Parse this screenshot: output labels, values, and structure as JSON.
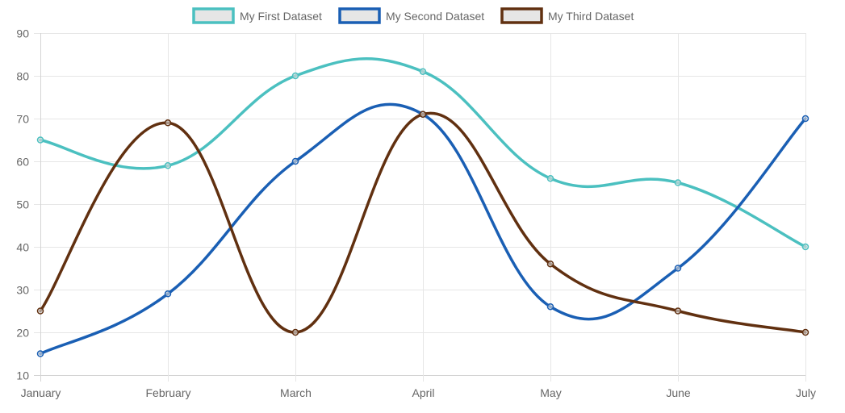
{
  "chart_data": {
    "type": "line",
    "categories": [
      "January",
      "February",
      "March",
      "April",
      "May",
      "June",
      "July"
    ],
    "series": [
      {
        "name": "My First Dataset",
        "values": [
          65,
          59,
          80,
          81,
          56,
          55,
          40
        ],
        "color": "#4bc0c0"
      },
      {
        "name": "My Second Dataset",
        "values": [
          15,
          29,
          60,
          71,
          26,
          35,
          70
        ],
        "color": "#1a5fb4"
      },
      {
        "name": "My Third Dataset",
        "values": [
          25,
          69,
          20,
          71,
          36,
          25,
          20
        ],
        "color": "#613010"
      }
    ],
    "ylim": [
      10,
      90
    ],
    "yticks": [
      10,
      20,
      30,
      40,
      50,
      60,
      70,
      80,
      90
    ],
    "grid": true,
    "legend": "top-center",
    "legend_fill": "#e6e6e6"
  }
}
